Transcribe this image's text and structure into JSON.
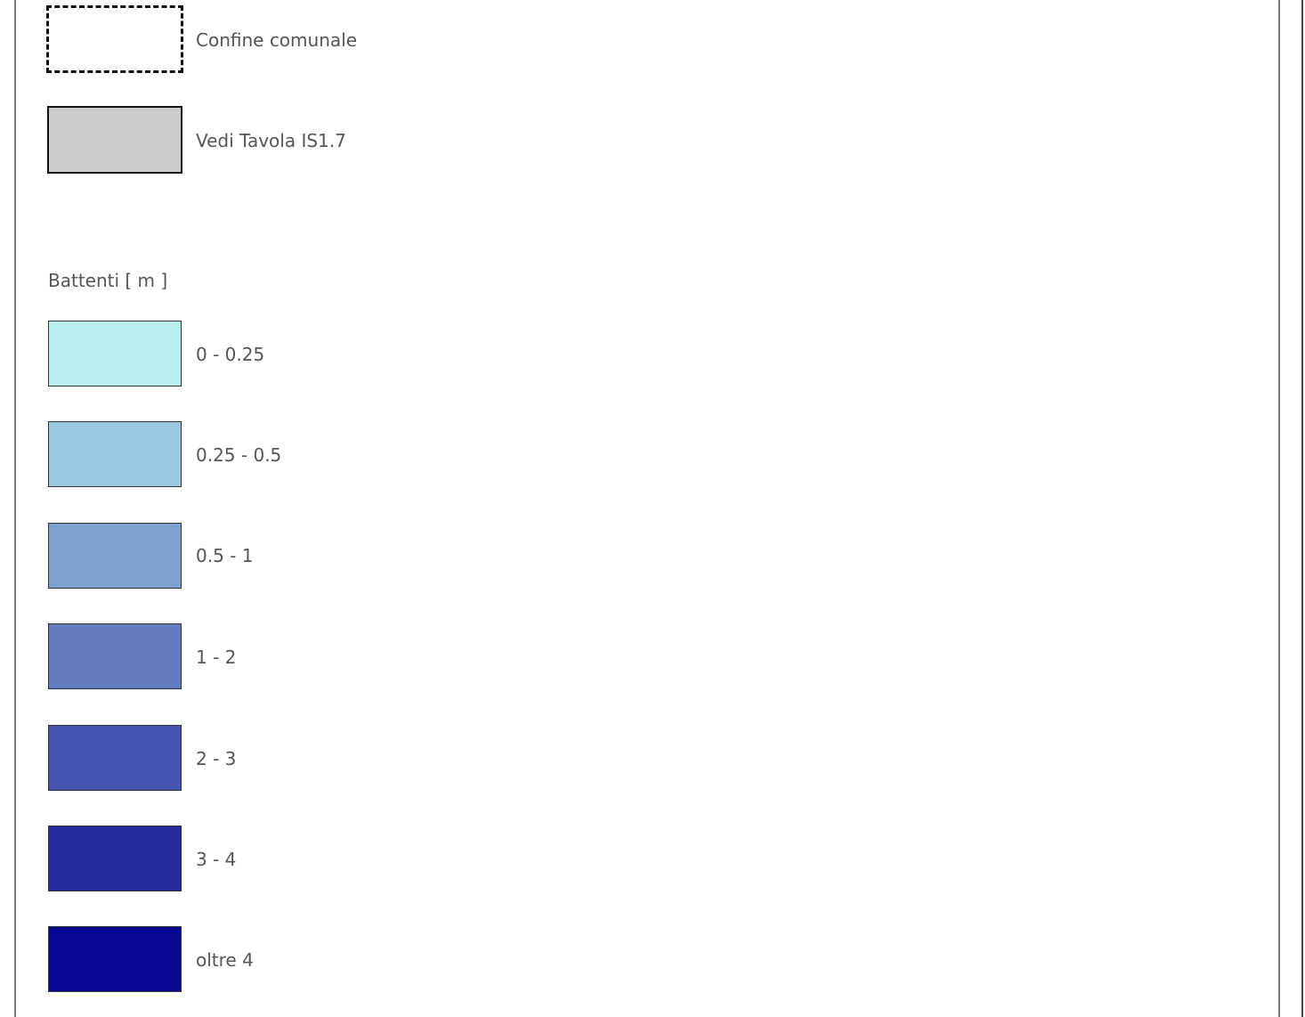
{
  "legend": {
    "boundary": {
      "label": "Confine comunale",
      "style": "dashed-outline",
      "fill": "#ffffff",
      "stroke": "#111111"
    },
    "reference_area": {
      "label": "Vedi Tavola IS1.7",
      "fill": "#cccccc",
      "stroke": "#111111"
    },
    "depth_title": "Battenti [ m ]",
    "depth_classes": [
      {
        "label": "0 - 0.25",
        "color": "#b8eeee"
      },
      {
        "label": "0.25 - 0.5",
        "color": "#9cc8e0"
      },
      {
        "label": "0.5 - 1",
        "color": "#7ea1d0"
      },
      {
        "label": "1 - 2",
        "color": "#627cbf"
      },
      {
        "label": "2 - 3",
        "color": "#4453b0"
      },
      {
        "label": "3 - 4",
        "color": "#262b9e"
      },
      {
        "label": "oltre 4",
        "color": "#070792"
      }
    ]
  }
}
